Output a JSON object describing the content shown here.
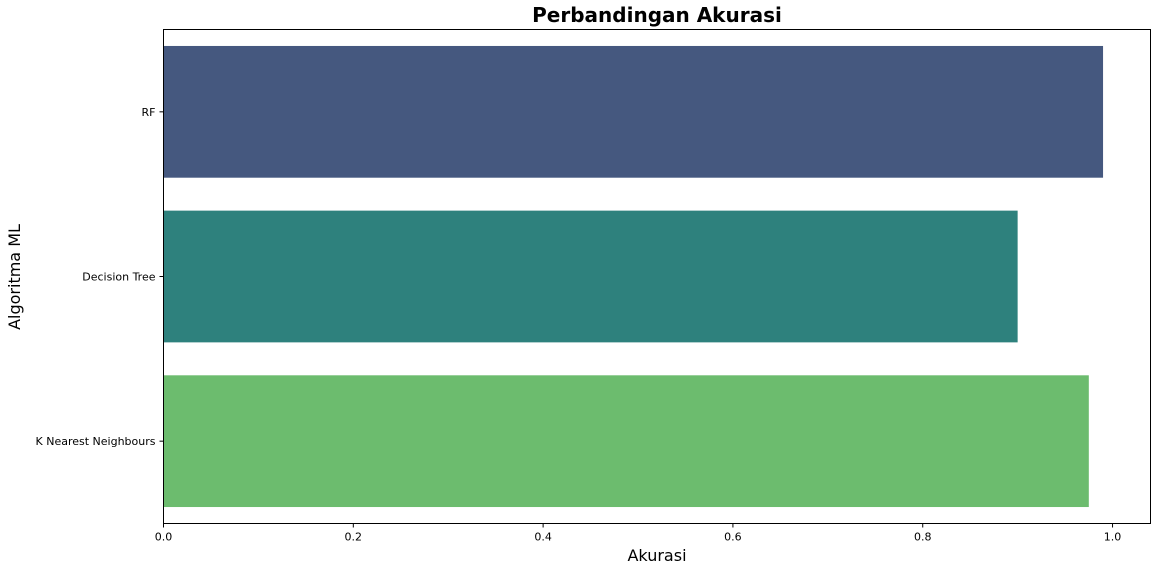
{
  "chart_data": {
    "type": "bar",
    "orientation": "horizontal",
    "title": "Perbandingan Akurasi",
    "xlabel": "Akurasi",
    "ylabel": "Algoritma ML",
    "categories": [
      "RF",
      "Decision Tree",
      "K Nearest Neighbours"
    ],
    "values": [
      0.99,
      0.9,
      0.975
    ],
    "colors": [
      "#45587f",
      "#2e817d",
      "#6cbc6e"
    ],
    "xlim": [
      0,
      1.04
    ],
    "xticks": [
      0.0,
      0.2,
      0.4,
      0.6,
      0.8,
      1.0
    ],
    "xtick_labels": [
      "0.0",
      "0.2",
      "0.4",
      "0.6",
      "0.8",
      "1.0"
    ],
    "grid": false,
    "legend": "none"
  }
}
